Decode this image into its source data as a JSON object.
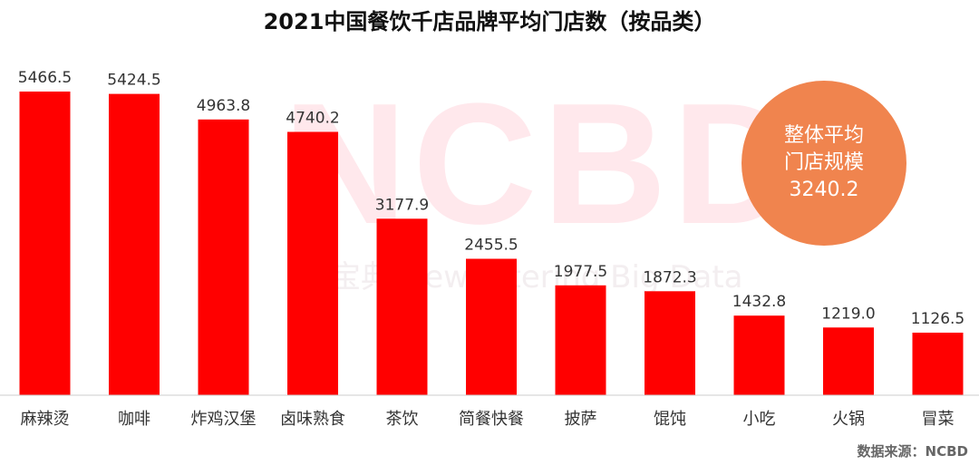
{
  "title": "2021中国餐饮千店品牌平均门店数（按品类）",
  "watermark": {
    "main": "NCBD",
    "sub": "餐宝典 NewCatering Big Data"
  },
  "average_badge": {
    "line1": "整体平均",
    "line2": "门店规模",
    "value": "3240.2"
  },
  "source": "数据来源：NCBD",
  "colors": {
    "bar": "#ff0000",
    "badge": "#f0844e",
    "axis": "#cccccc",
    "text": "#333333"
  },
  "chart_data": {
    "type": "bar",
    "title": "2021中国餐饮千店品牌平均门店数（按品类）",
    "categories": [
      "麻辣烫",
      "咖啡",
      "炸鸡汉堡",
      "卤味熟食",
      "茶饮",
      "简餐快餐",
      "披萨",
      "馄饨",
      "小吃",
      "火锅",
      "冒菜"
    ],
    "values": [
      5466.5,
      5424.5,
      4963.8,
      4740.2,
      3177.9,
      2455.5,
      1977.5,
      1872.3,
      1432.8,
      1219.0,
      1126.5
    ],
    "value_labels": [
      "5466.5",
      "5424.5",
      "4963.8",
      "4740.2",
      "3177.9",
      "2455.5",
      "1977.5",
      "1872.3",
      "1432.8",
      "1219.0",
      "1126.5"
    ],
    "xlabel": "",
    "ylabel": "",
    "ylim": [
      0,
      5500
    ],
    "grid": false,
    "legend": "none"
  }
}
